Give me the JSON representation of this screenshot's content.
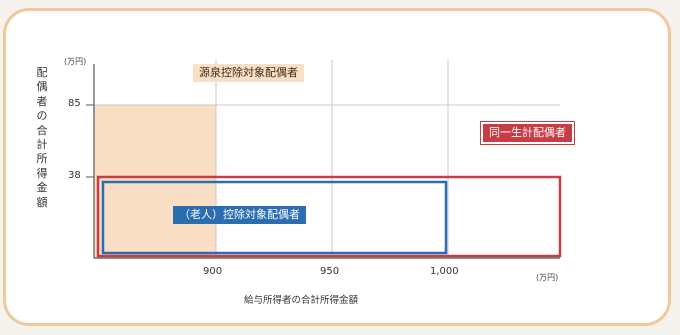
{
  "diagram": {
    "y_unit": "(万円)",
    "x_unit": "(万円)",
    "y_axis_title": "配偶者の合計所得金額",
    "x_axis_title": "給与所得者の合計所得金額",
    "y_ticks": [
      "85",
      "38"
    ],
    "x_ticks": [
      "900",
      "950",
      "1,000"
    ],
    "labels": {
      "orange": "源泉控除対象配偶者",
      "red": "同一生計配偶者",
      "blue": "（老人）控除対象配偶者"
    },
    "colors": {
      "card_border": "#f1c79e",
      "orange_fill": "#fbdfc4",
      "red": "#c83c46",
      "blue": "#2a6db1",
      "grid": "#c9c9c9",
      "axis": "#555555"
    }
  }
}
